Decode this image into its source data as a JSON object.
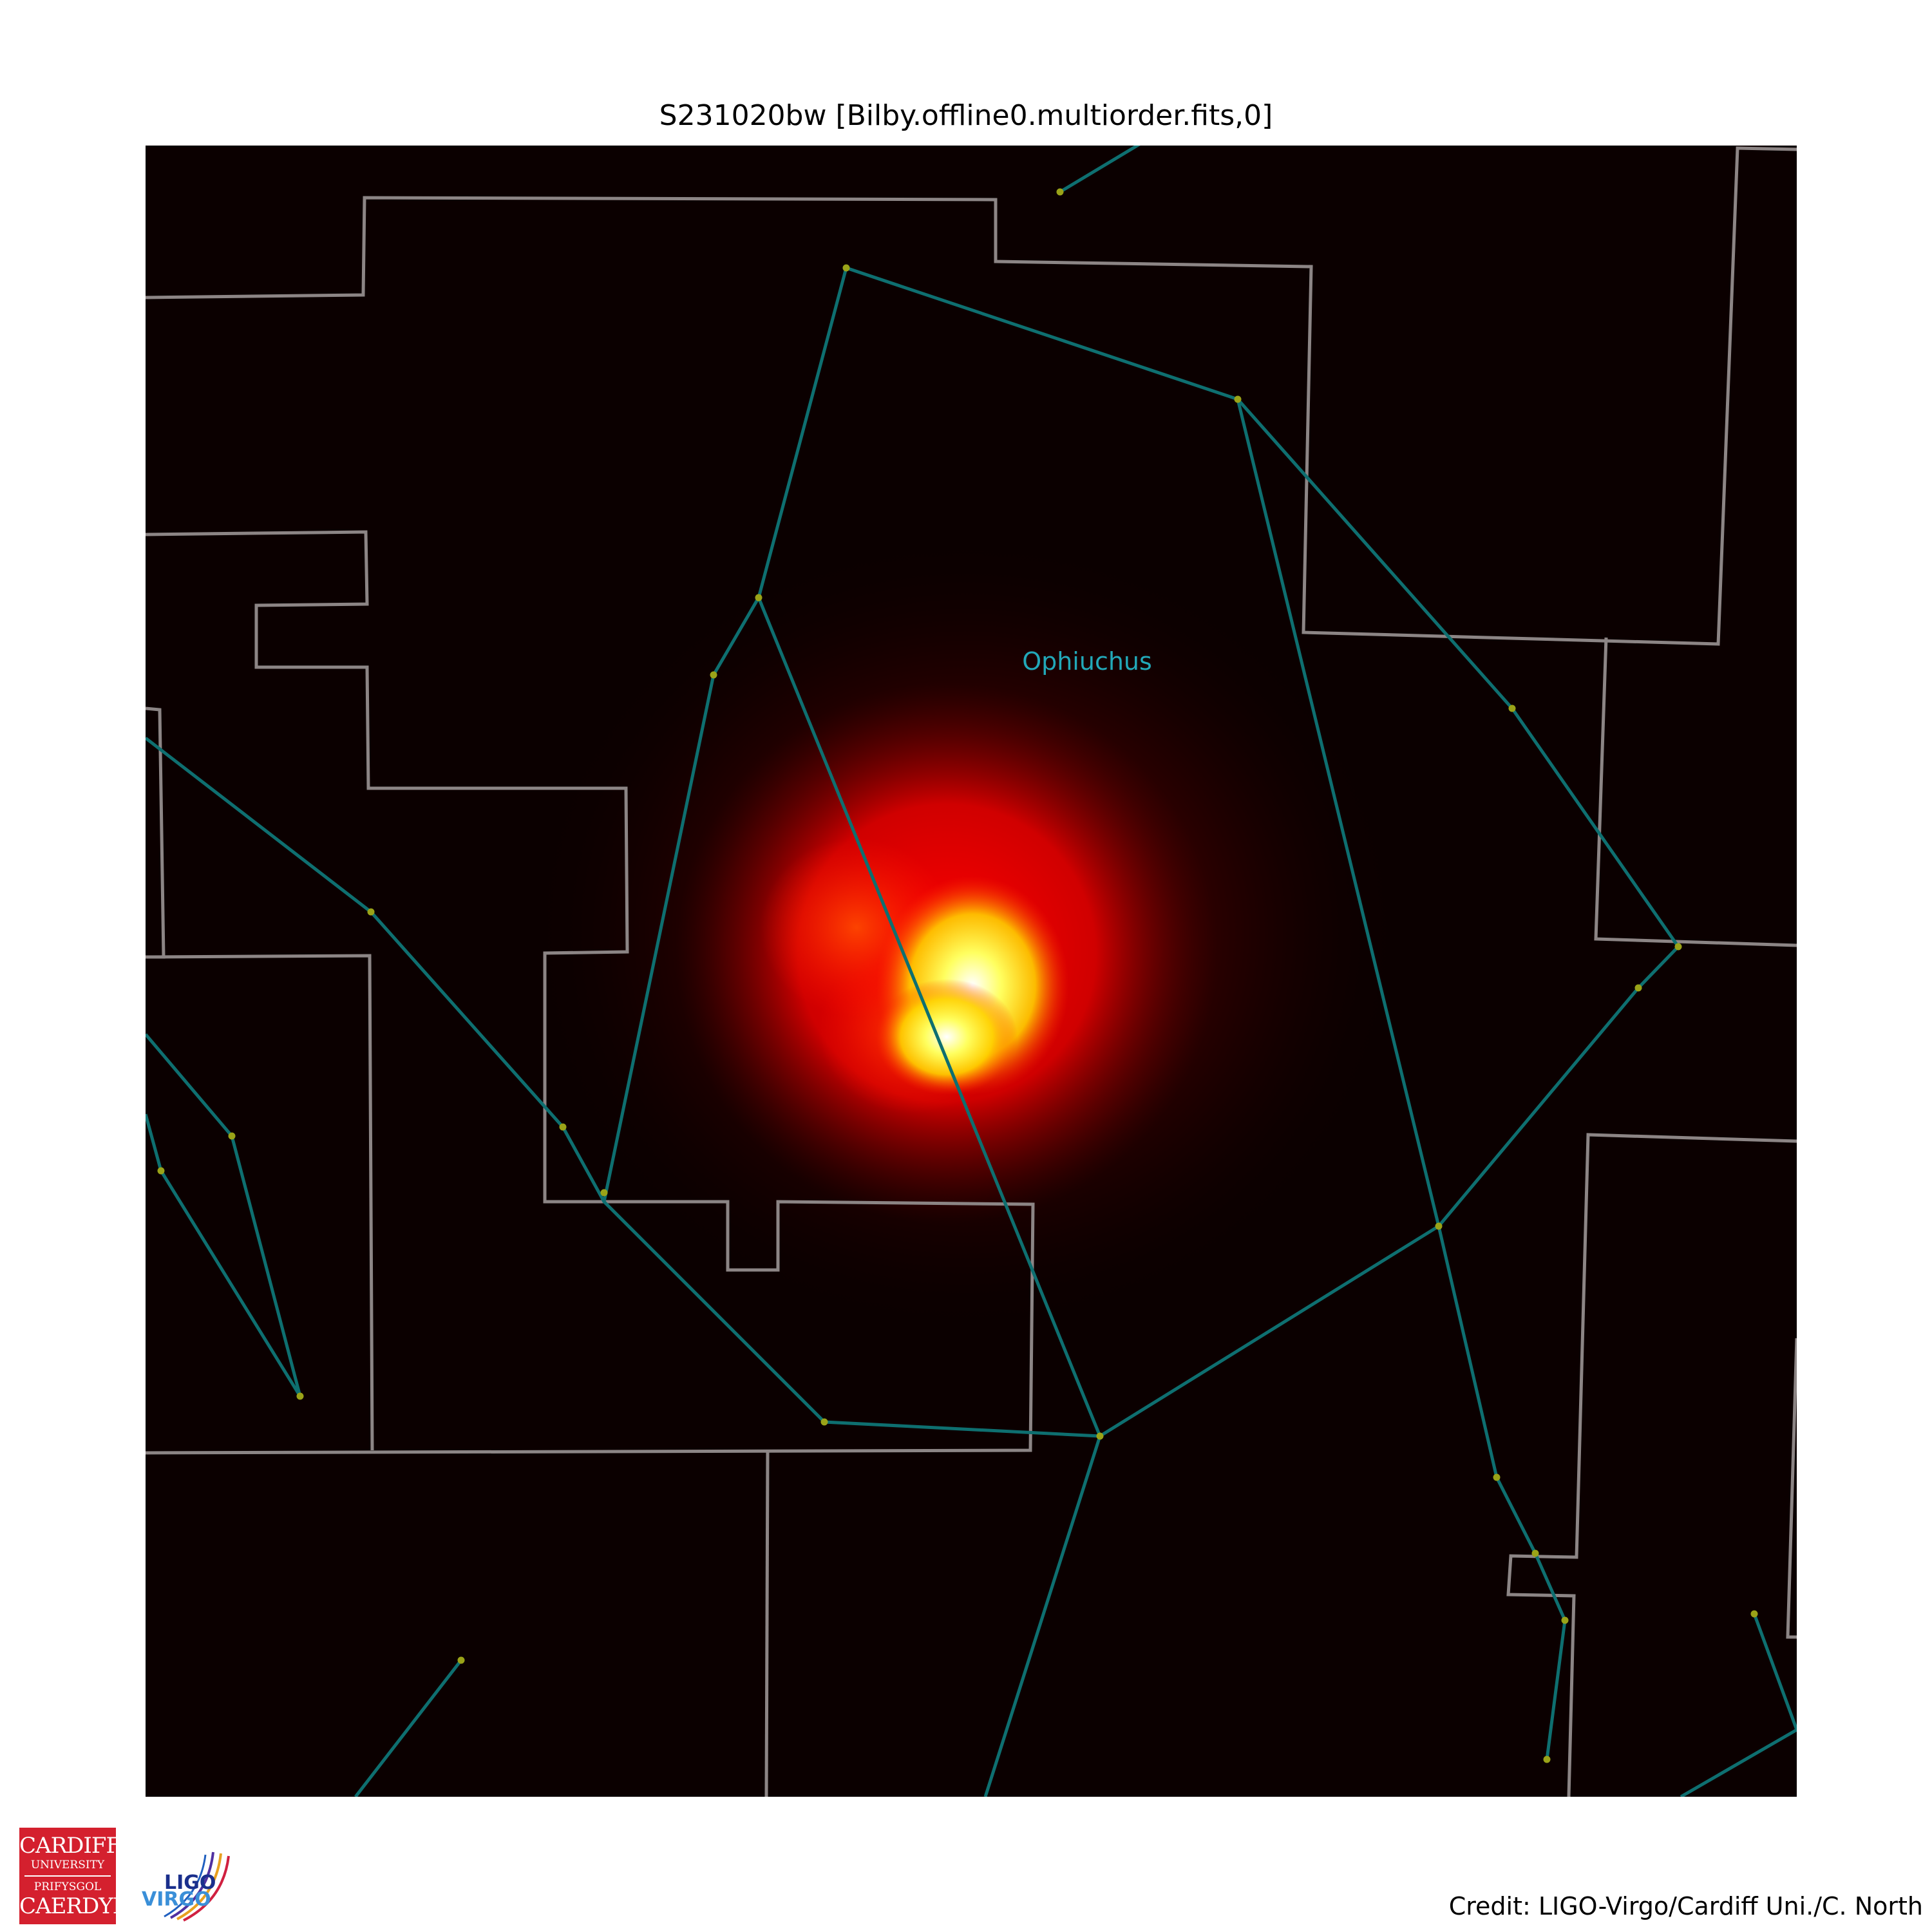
{
  "title": "S231020bw [Bilby.offline0.multiorder.fits,0]",
  "constellation_label": "Ophiuchus",
  "credit": "Credit: LIGO-Virgo/Cardiff Uni./C. North",
  "logos": {
    "cardiff": [
      "CARDIFF",
      "UNIVERSITY",
      "PRIFYSGOL",
      "CAERDYD"
    ],
    "ligo": "LIGO",
    "virgo": "VIRGO"
  },
  "colors": {
    "background": "#0b0000",
    "constellation_lines": "#0e6f70",
    "boundaries": "#8c8585",
    "stars": "#9aa318",
    "label": "#22a8b8"
  }
}
